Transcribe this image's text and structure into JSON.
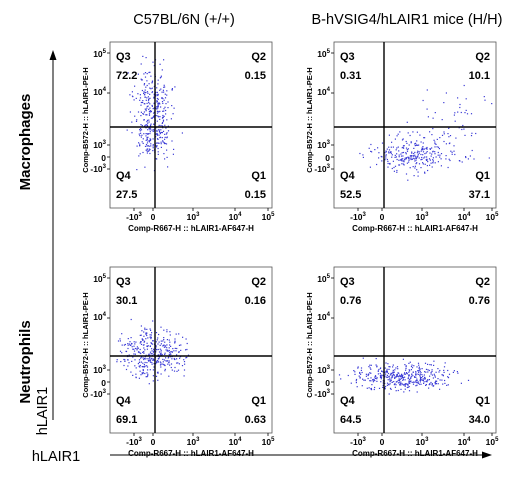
{
  "column_titles": [
    "C57BL/6N (+/+)",
    "B-hVSIG4/hLAIR1 mice (H/H)"
  ],
  "row_titles": [
    "Macrophages",
    "Neutrophils"
  ],
  "axis_labels": {
    "y_main": "hLAIR1",
    "x_main": "hLAIR1"
  },
  "colors": {
    "dots": "#3b3bd6",
    "lines": "#000000"
  },
  "chart_data": [
    {
      "type": "scatter",
      "panel": "macrophages-wt",
      "xlabel": "Comp-R667-H :: hLAIR1-AF647-H",
      "ylabel": "Comp-B572-H :: hLAIR1-PE-H",
      "x_ticks": [
        "-10³",
        "0",
        "10³",
        "10⁴",
        "10⁵"
      ],
      "y_ticks": [
        "10⁵",
        "10⁴",
        "10³",
        "0",
        "-10³"
      ],
      "quadrants": [
        {
          "name": "Q3",
          "value": "72.2"
        },
        {
          "name": "Q2",
          "value": "0.15"
        },
        {
          "name": "Q4",
          "value": "27.5"
        },
        {
          "name": "Q1",
          "value": "0.15"
        }
      ]
    },
    {
      "type": "scatter",
      "panel": "macrophages-hh",
      "xlabel": "Comp-R667-H :: hLAIR1-AF647-H",
      "ylabel": "Comp-B572-H :: hLAIR1-PE-H",
      "x_ticks": [
        "-10³",
        "0",
        "10³",
        "10⁴",
        "10⁵"
      ],
      "y_ticks": [
        "10⁵",
        "10⁴",
        "10³",
        "0",
        "-10³"
      ],
      "quadrants": [
        {
          "name": "Q3",
          "value": "0.31"
        },
        {
          "name": "Q2",
          "value": "10.1"
        },
        {
          "name": "Q4",
          "value": "52.5"
        },
        {
          "name": "Q1",
          "value": "37.1"
        }
      ]
    },
    {
      "type": "scatter",
      "panel": "neutrophils-wt",
      "xlabel": "Comp-R667-H :: hLAIR1-AF647-H",
      "ylabel": "Comp-B572-H :: hLAIR1-PE-H",
      "x_ticks": [
        "-10³",
        "0",
        "10³",
        "10⁴",
        "10⁵"
      ],
      "y_ticks": [
        "10⁵",
        "10⁴",
        "10³",
        "0",
        "-10³"
      ],
      "quadrants": [
        {
          "name": "Q3",
          "value": "30.1"
        },
        {
          "name": "Q2",
          "value": "0.16"
        },
        {
          "name": "Q4",
          "value": "69.1"
        },
        {
          "name": "Q1",
          "value": "0.63"
        }
      ]
    },
    {
      "type": "scatter",
      "panel": "neutrophils-hh",
      "xlabel": "Comp-R667-H :: hLAIR1-AF647-H",
      "ylabel": "Comp-B572-H :: hLAIR1-PE-H",
      "x_ticks": [
        "-10³",
        "0",
        "10³",
        "10⁴",
        "10⁵"
      ],
      "y_ticks": [
        "10⁵",
        "10⁴",
        "10³",
        "0",
        "-10³"
      ],
      "quadrants": [
        {
          "name": "Q3",
          "value": "0.76"
        },
        {
          "name": "Q2",
          "value": "0.76"
        },
        {
          "name": "Q4",
          "value": "64.5"
        },
        {
          "name": "Q1",
          "value": "34.0"
        }
      ]
    }
  ]
}
